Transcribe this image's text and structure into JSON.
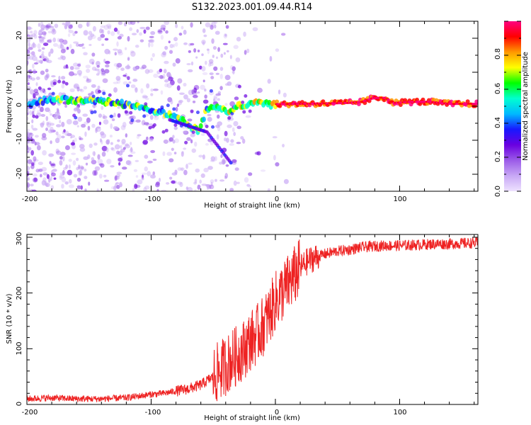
{
  "title": "S132.2023.001.09.44.R14",
  "chart_data": [
    {
      "type": "heatmap",
      "title": "S132.2023.001.09.44.R14",
      "xlabel": "Height of straight line (km)",
      "ylabel": "Frequency (Hz)",
      "xlim": [
        -200,
        163
      ],
      "ylim": [
        -25,
        25
      ],
      "xticks": [
        -200,
        -100,
        0,
        100
      ],
      "yticks": [
        20,
        10,
        0,
        -10,
        -20
      ],
      "ridge": [
        [
          -197,
          0
        ],
        [
          -190,
          1.5
        ],
        [
          -180,
          2
        ],
        [
          -170,
          2
        ],
        [
          -160,
          1.5
        ],
        [
          -150,
          1.5
        ],
        [
          -140,
          1.5
        ],
        [
          -130,
          1
        ],
        [
          -120,
          0.5
        ],
        [
          -110,
          0
        ],
        [
          -100,
          -1
        ],
        [
          -90,
          -2
        ],
        [
          -80,
          -3
        ],
        [
          -70,
          -5.5
        ],
        [
          -62,
          -7
        ],
        [
          -55,
          -1
        ],
        [
          -48,
          -0.5
        ],
        [
          -40,
          -1.5
        ],
        [
          -30,
          0
        ],
        [
          -20,
          0.8
        ],
        [
          -12,
          1.5
        ],
        [
          -5,
          0.5
        ],
        [
          0,
          0.6
        ],
        [
          20,
          0.7
        ],
        [
          40,
          0.8
        ],
        [
          60,
          1
        ],
        [
          70,
          1.3
        ],
        [
          78,
          2.3
        ],
        [
          88,
          2.5
        ],
        [
          96,
          1
        ],
        [
          110,
          1.3
        ],
        [
          125,
          1.3
        ],
        [
          140,
          0.7
        ],
        [
          163,
          0.7
        ]
      ],
      "colorbar": {
        "label": "Normalized spectral amplitude",
        "ticks": [
          "0.0",
          "0.2",
          "0.4",
          "0.6",
          "0.8"
        ],
        "stops": [
          "#eee2ff",
          "#c8a8f5",
          "#9b5be8",
          "#6a00e0",
          "#1818ff",
          "#00b8ff",
          "#00ffd0",
          "#00ff00",
          "#ffff00",
          "#ff9900",
          "#ff0000",
          "#ff0080"
        ]
      }
    },
    {
      "type": "line",
      "xlabel": "Height of straight line (km)",
      "ylabel": "SNR (10 * v/v)",
      "xlim": [
        -200,
        163
      ],
      "ylim": [
        0,
        305
      ],
      "xticks": [
        -200,
        -100,
        0,
        100
      ],
      "yticks": [
        0,
        100,
        200,
        300
      ],
      "color": "#ee2222",
      "series": [
        {
          "name": "SNR",
          "x": [
            -200,
            -180,
            -160,
            -140,
            -120,
            -110,
            -100,
            -90,
            -80,
            -70,
            -60,
            -50,
            -45,
            -40,
            -35,
            -30,
            -25,
            -20,
            -15,
            -10,
            -5,
            0,
            5,
            10,
            15,
            20,
            25,
            30,
            40,
            50,
            60,
            70,
            80,
            90,
            100,
            110,
            120,
            130,
            140,
            150,
            163
          ],
          "y": [
            10,
            12,
            10,
            10,
            12,
            15,
            18,
            20,
            24,
            28,
            35,
            50,
            60,
            70,
            80,
            90,
            100,
            115,
            125,
            140,
            160,
            185,
            200,
            215,
            230,
            245,
            255,
            262,
            270,
            275,
            278,
            282,
            284,
            285,
            285,
            286,
            287,
            288,
            288,
            289,
            290
          ]
        }
      ]
    }
  ]
}
